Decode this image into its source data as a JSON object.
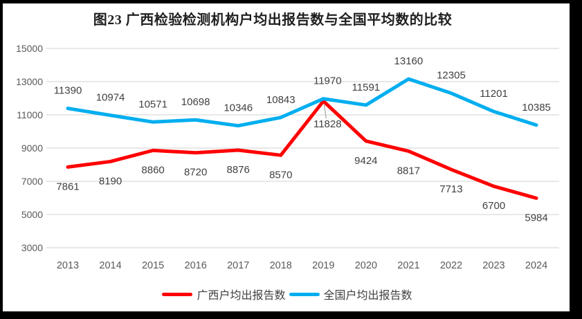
{
  "title": "图23 广西检验检测机构户均出报告数与全国平均数的比较",
  "chart_data": {
    "type": "line",
    "title": "图23 广西检验检测机构户均出报告数与全国平均数的比较",
    "categories": [
      "2013",
      "2014",
      "2015",
      "2016",
      "2017",
      "2018",
      "2019",
      "2020",
      "2021",
      "2022",
      "2023",
      "2024"
    ],
    "series": [
      {
        "name": "广西户均出报告数",
        "color": "#FF0000",
        "label_position": "below",
        "values": [
          7861,
          8190,
          8860,
          8720,
          8876,
          8570,
          11828,
          9424,
          8817,
          7713,
          6700,
          5984
        ]
      },
      {
        "name": "全国户均出报告数",
        "color": "#00AEEF",
        "label_position": "above",
        "values": [
          11390,
          10974,
          10571,
          10698,
          10346,
          10843,
          11970,
          11591,
          13160,
          12305,
          11201,
          10385
        ]
      }
    ],
    "ylim": [
      3000,
      15000
    ],
    "yticks": [
      15000,
      13000,
      11000,
      9000,
      7000,
      5000,
      3000
    ],
    "xlabel": "",
    "ylabel": "",
    "grid": "horizontal",
    "legend_position": "bottom",
    "data_labels": true,
    "callout": {
      "series": "广西户均出报告数",
      "category": "2019",
      "value": 11828,
      "has_leader_line": true
    }
  },
  "style": {
    "frame_color": "#000000",
    "background": "#FFFFFF",
    "gridline_color": "#D9D9D9",
    "tick_label_color": "#595959",
    "data_label_color": "#404040",
    "title_color": "#1F1F1F",
    "leader_line_color": "#A6A6A6"
  }
}
